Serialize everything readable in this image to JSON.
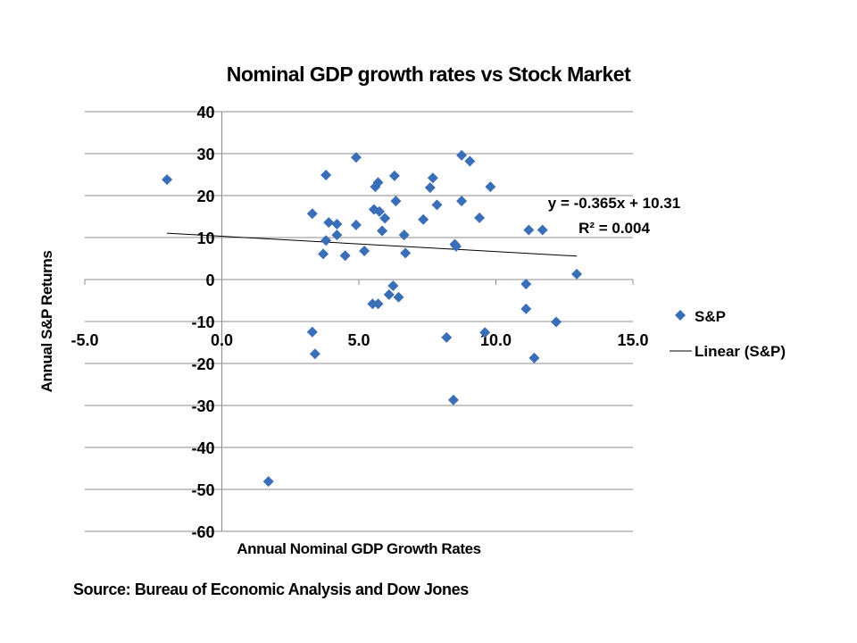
{
  "chart_data": {
    "type": "scatter",
    "title": "Nominal GDP growth rates vs Stock Market",
    "xlabel": "Annual Nominal GDP Growth Rates",
    "ylabel": "Annual S&P Returns",
    "xlim": [
      -5,
      15
    ],
    "ylim": [
      -60,
      40
    ],
    "x_ticks": [
      "-5.0",
      "0.0",
      "5.0",
      "10.0",
      "15.0"
    ],
    "y_ticks": [
      "40",
      "30",
      "20",
      "10",
      "0",
      "-10",
      "-20",
      "-30",
      "-40",
      "-50",
      "-60"
    ],
    "grid": "horizontal",
    "legend_position": "right",
    "marker_color": "#3A6FB8",
    "series": [
      {
        "name": "S&P",
        "points": [
          [
            -2.0,
            23.8
          ],
          [
            1.7,
            -48.1
          ],
          [
            3.3,
            15.7
          ],
          [
            3.3,
            -12.5
          ],
          [
            3.4,
            -17.7
          ],
          [
            3.7,
            6.1
          ],
          [
            3.8,
            24.9
          ],
          [
            3.8,
            9.3
          ],
          [
            3.9,
            13.6
          ],
          [
            4.2,
            13.2
          ],
          [
            4.2,
            10.6
          ],
          [
            4.5,
            5.7
          ],
          [
            4.9,
            13.0
          ],
          [
            4.9,
            29.1
          ],
          [
            5.2,
            6.8
          ],
          [
            5.5,
            -5.8
          ],
          [
            5.55,
            16.7
          ],
          [
            5.6,
            22.1
          ],
          [
            5.7,
            23.1
          ],
          [
            5.7,
            -5.8
          ],
          [
            5.75,
            16.2
          ],
          [
            5.85,
            11.6
          ],
          [
            5.95,
            14.6
          ],
          [
            6.1,
            -3.6
          ],
          [
            6.25,
            -1.5
          ],
          [
            6.3,
            24.7
          ],
          [
            6.35,
            18.7
          ],
          [
            6.45,
            -4.2
          ],
          [
            6.65,
            10.6
          ],
          [
            6.7,
            6.3
          ],
          [
            7.35,
            14.3
          ],
          [
            7.6,
            21.9
          ],
          [
            7.7,
            24.2
          ],
          [
            7.85,
            17.8
          ],
          [
            8.2,
            -13.8
          ],
          [
            8.45,
            -28.7
          ],
          [
            8.5,
            8.4
          ],
          [
            8.55,
            7.9
          ],
          [
            8.75,
            29.6
          ],
          [
            8.75,
            18.7
          ],
          [
            9.05,
            28.2
          ],
          [
            9.4,
            14.7
          ],
          [
            9.6,
            -12.6
          ],
          [
            9.8,
            22.1
          ],
          [
            11.1,
            -1.1
          ],
          [
            11.1,
            -7.0
          ],
          [
            11.2,
            11.8
          ],
          [
            11.4,
            -18.7
          ],
          [
            11.7,
            11.8
          ],
          [
            12.2,
            -10.1
          ],
          [
            12.95,
            1.3
          ]
        ]
      }
    ],
    "trendline": {
      "name": "Linear (S&P)",
      "slope": -0.365,
      "intercept": 10.31,
      "x_range": [
        -2.0,
        12.95
      ],
      "equation_label": "y = -0.365x + 10.31",
      "r2_label": "R² = 0.004"
    }
  },
  "source": "Source: Bureau of Economic Analysis and Dow Jones"
}
